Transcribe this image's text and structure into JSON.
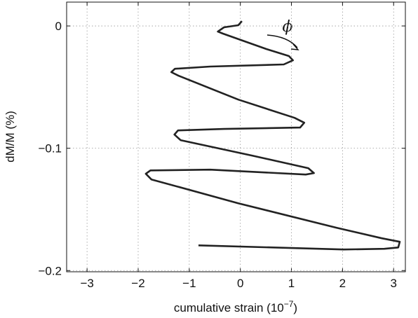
{
  "chart_data": {
    "type": "line",
    "xlabel": "cumulative strain (10",
    "xlabel_exponent": "−7",
    "xlabel_end": ")",
    "ylabel": "dM/M (%)",
    "annotation": "ϕ",
    "x": [
      0.03,
      -0.04,
      -0.32,
      -0.44,
      -0.34,
      0.51,
      0.95,
      1.03,
      0.85,
      -0.59,
      -1.28,
      -1.35,
      -1.21,
      -0.04,
      1.06,
      1.25,
      1.17,
      -0.32,
      -1.22,
      -1.29,
      -1.17,
      0.23,
      1.33,
      1.44,
      1.28,
      -0.59,
      -1.76,
      -1.85,
      -1.74,
      -0.04,
      1.88,
      2.77,
      3.12,
      3.09,
      2.82,
      2.02,
      -0.82
    ],
    "series": [
      {
        "color": "#222222",
        "values": [
          0.004,
          0.0006,
          -0.0011,
          -0.0046,
          -0.0063,
          -0.0189,
          -0.0246,
          -0.0281,
          -0.0315,
          -0.0332,
          -0.035,
          -0.0378,
          -0.0407,
          -0.0602,
          -0.0751,
          -0.0791,
          -0.0831,
          -0.0842,
          -0.0854,
          -0.0888,
          -0.0934,
          -0.106,
          -0.1163,
          -0.1203,
          -0.1215,
          -0.1175,
          -0.1181,
          -0.1209,
          -0.1255,
          -0.145,
          -0.165,
          -0.1736,
          -0.1765,
          -0.1811,
          -0.1822,
          -0.1828,
          -0.1794
        ]
      }
    ],
    "xlim": [
      -3.4,
      3.23
    ],
    "ylim": [
      -0.201,
      0.0195
    ],
    "xticks": [
      {
        "value": -3,
        "label": "−3"
      },
      {
        "value": -2,
        "label": "−2"
      },
      {
        "value": -1,
        "label": "−1"
      },
      0,
      1,
      2,
      3
    ],
    "yticks": [
      {
        "value": -0.2,
        "label": "−0.2"
      },
      {
        "value": -0.1,
        "label": "−0.1"
      },
      0
    ],
    "grid": true
  }
}
